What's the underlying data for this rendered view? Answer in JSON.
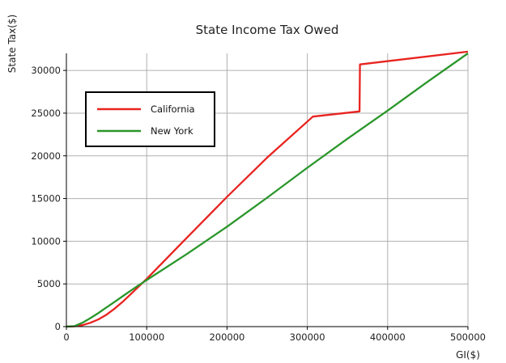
{
  "chart_data": {
    "type": "line",
    "title": "State Income Tax Owed",
    "xlabel": "GI($)",
    "ylabel": "State Tax($)",
    "xlim": [
      0,
      500000
    ],
    "ylim": [
      0,
      32000
    ],
    "xticks": [
      0,
      100000,
      200000,
      300000,
      400000,
      500000
    ],
    "yticks": [
      0,
      5000,
      10000,
      15000,
      20000,
      25000,
      30000
    ],
    "grid": true,
    "legend_position": "upper-left",
    "series": [
      {
        "name": "California",
        "color": "#e8231f",
        "x": [
          0,
          10000,
          20000,
          30000,
          40000,
          50000,
          60000,
          70000,
          80000,
          90000,
          100000,
          150000,
          200000,
          250000,
          307000,
          365000,
          365500,
          500000
        ],
        "y": [
          0,
          40,
          170,
          450,
          850,
          1400,
          2100,
          2900,
          3800,
          4700,
          5600,
          10400,
          15200,
          19800,
          24600,
          25200,
          30700,
          32200
        ]
      },
      {
        "name": "New York",
        "color": "#2a962a",
        "x": [
          0,
          10000,
          20000,
          30000,
          40000,
          50000,
          60000,
          70000,
          80000,
          90000,
          100000,
          150000,
          200000,
          250000,
          300000,
          350000,
          400000,
          450000,
          500000
        ],
        "y": [
          0,
          60,
          450,
          1000,
          1600,
          2250,
          2900,
          3550,
          4200,
          4850,
          5450,
          8500,
          11700,
          15100,
          18600,
          22000,
          25300,
          28700,
          32000
        ]
      }
    ]
  }
}
